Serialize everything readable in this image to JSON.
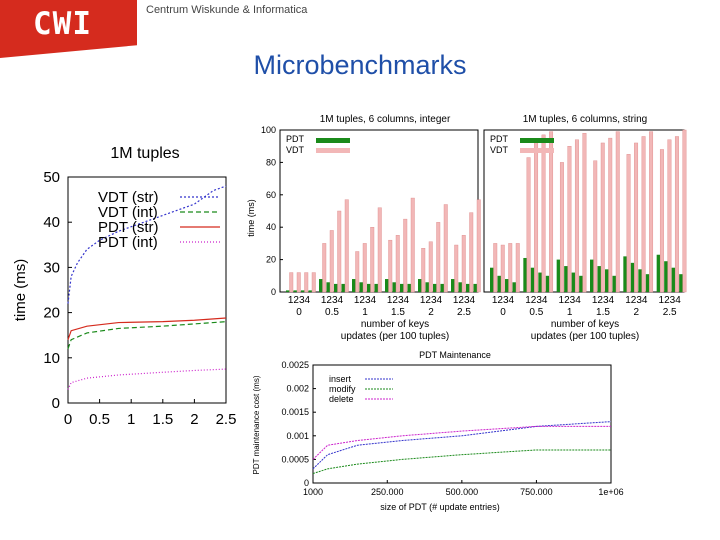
{
  "header": {
    "logo": "CWI",
    "org_name": "Centrum Wiskunde & Informatica",
    "title": "Microbenchmarks"
  },
  "colors": {
    "brand": "#d52b1e",
    "title": "#1f4fa8",
    "pdt_bar": "#1a8a1a",
    "vdt_bar": "#f2b7b7"
  },
  "chart_data": [
    {
      "type": "line",
      "title": "1M tuples",
      "xlabel": "",
      "ylabel": "time (ms)",
      "xlim": [
        0,
        2.5
      ],
      "ylim": [
        0,
        50
      ],
      "xticks": [
        "0",
        "0.5",
        "1",
        "1.5",
        "2",
        "2.5"
      ],
      "yticks": [
        "0",
        "10",
        "20",
        "30",
        "40",
        "50"
      ],
      "series": [
        {
          "name": "VDT (str)",
          "color": "#3333cc",
          "dash": "2,2",
          "x": [
            0,
            0.05,
            0.15,
            0.3,
            0.5,
            0.8,
            1.2,
            1.6,
            2.0,
            2.3,
            2.5
          ],
          "y": [
            22,
            28,
            31,
            34,
            36,
            38,
            40,
            42,
            44,
            47,
            48
          ]
        },
        {
          "name": "VDT (int)",
          "color": "#1a8a1a",
          "dash": "5,3",
          "x": [
            0,
            0.05,
            0.3,
            0.8,
            1.5,
            2.0,
            2.5
          ],
          "y": [
            12,
            14,
            15.5,
            16.5,
            17,
            17.5,
            18
          ]
        },
        {
          "name": "PDT (str)",
          "color": "#d52b1e",
          "dash": "",
          "x": [
            0,
            0.05,
            0.3,
            0.8,
            1.5,
            2.0,
            2.5
          ],
          "y": [
            14,
            16,
            17,
            17.8,
            18,
            18.3,
            18.8
          ]
        },
        {
          "name": "PDT (int)",
          "color": "#cc22cc",
          "dash": "1,2",
          "x": [
            0,
            0.05,
            0.3,
            0.8,
            1.5,
            2.0,
            2.5
          ],
          "y": [
            3,
            4.5,
            5.5,
            6.2,
            6.8,
            7.2,
            7.5
          ]
        }
      ]
    },
    {
      "type": "bar",
      "title": "1M tuples, 6 columns, integer",
      "xlabel": "number of keys",
      "xlabel2": "updates (per 100 tuples)",
      "ylabel": "time (ms)",
      "ylim": [
        0,
        100
      ],
      "yticks": [
        "0",
        "20",
        "40",
        "60",
        "80",
        "100"
      ],
      "key_labels": [
        "1",
        "2",
        "3",
        "4"
      ],
      "categories": [
        "0",
        "0.5",
        "1",
        "1.5",
        "2",
        "2.5"
      ],
      "series": [
        {
          "name": "PDT",
          "values": [
            [
              1,
              1,
              1,
              1
            ],
            [
              8,
              6,
              5,
              5
            ],
            [
              8,
              6,
              5,
              5
            ],
            [
              8,
              6,
              5,
              5
            ],
            [
              8,
              6,
              5,
              5
            ],
            [
              8,
              6,
              5,
              5
            ]
          ]
        },
        {
          "name": "VDT",
          "values": [
            [
              12,
              12,
              12,
              12
            ],
            [
              30,
              38,
              50,
              57
            ],
            [
              25,
              30,
              40,
              52
            ],
            [
              32,
              35,
              45,
              58
            ],
            [
              27,
              31,
              43,
              54
            ],
            [
              29,
              35,
              49,
              57
            ]
          ]
        }
      ]
    },
    {
      "type": "bar",
      "title": "1M tuples, 6 columns, string",
      "xlabel": "number of keys",
      "xlabel2": "updates (per 100 tuples)",
      "ylabel": "",
      "ylim": [
        0,
        100
      ],
      "key_labels": [
        "1",
        "2",
        "3",
        "4"
      ],
      "categories": [
        "0",
        "0.5",
        "1",
        "1.5",
        "2",
        "2.5"
      ],
      "series": [
        {
          "name": "PDT",
          "values": [
            [
              15,
              10,
              8,
              6
            ],
            [
              21,
              15,
              12,
              10
            ],
            [
              20,
              16,
              12,
              10
            ],
            [
              20,
              16,
              14,
              10
            ],
            [
              22,
              18,
              14,
              11
            ],
            [
              23,
              19,
              15,
              11
            ]
          ]
        },
        {
          "name": "VDT",
          "values": [
            [
              30,
              29,
              30,
              30
            ],
            [
              83,
              93,
              97,
              99
            ],
            [
              80,
              90,
              94,
              98
            ],
            [
              81,
              92,
              95,
              99
            ],
            [
              85,
              92,
              96,
              99
            ],
            [
              88,
              94,
              96,
              100
            ]
          ]
        }
      ]
    },
    {
      "type": "line",
      "title": "PDT Maintenance",
      "xlabel": "size of PDT (# update entries)",
      "ylabel": "PDT maintenance cost (ms)",
      "xlim": [
        1000,
        1000000
      ],
      "ylim": [
        0,
        0.0025
      ],
      "xticks": [
        "1000",
        "250.000",
        "500.000",
        "750.000",
        "1e+06"
      ],
      "yticks": [
        "0",
        "0.0005",
        "0.001",
        "0.0015",
        "0.002",
        "0.0025"
      ],
      "series": [
        {
          "name": "insert",
          "color": "#3333cc",
          "x": [
            1000,
            50000,
            150000,
            300000,
            500000,
            750000,
            1000000
          ],
          "y": [
            0.0003,
            0.0006,
            0.0008,
            0.0009,
            0.001,
            0.0012,
            0.0013
          ]
        },
        {
          "name": "modify",
          "color": "#1a8a1a",
          "x": [
            1000,
            50000,
            150000,
            300000,
            500000,
            750000,
            1000000
          ],
          "y": [
            0.0002,
            0.0003,
            0.0004,
            0.0005,
            0.0006,
            0.0007,
            0.0007
          ]
        },
        {
          "name": "delete",
          "color": "#cc22cc",
          "x": [
            1000,
            50000,
            150000,
            300000,
            500000,
            750000,
            1000000
          ],
          "y": [
            0.0005,
            0.0008,
            0.0009,
            0.001,
            0.0011,
            0.0012,
            0.0012
          ]
        }
      ]
    }
  ]
}
